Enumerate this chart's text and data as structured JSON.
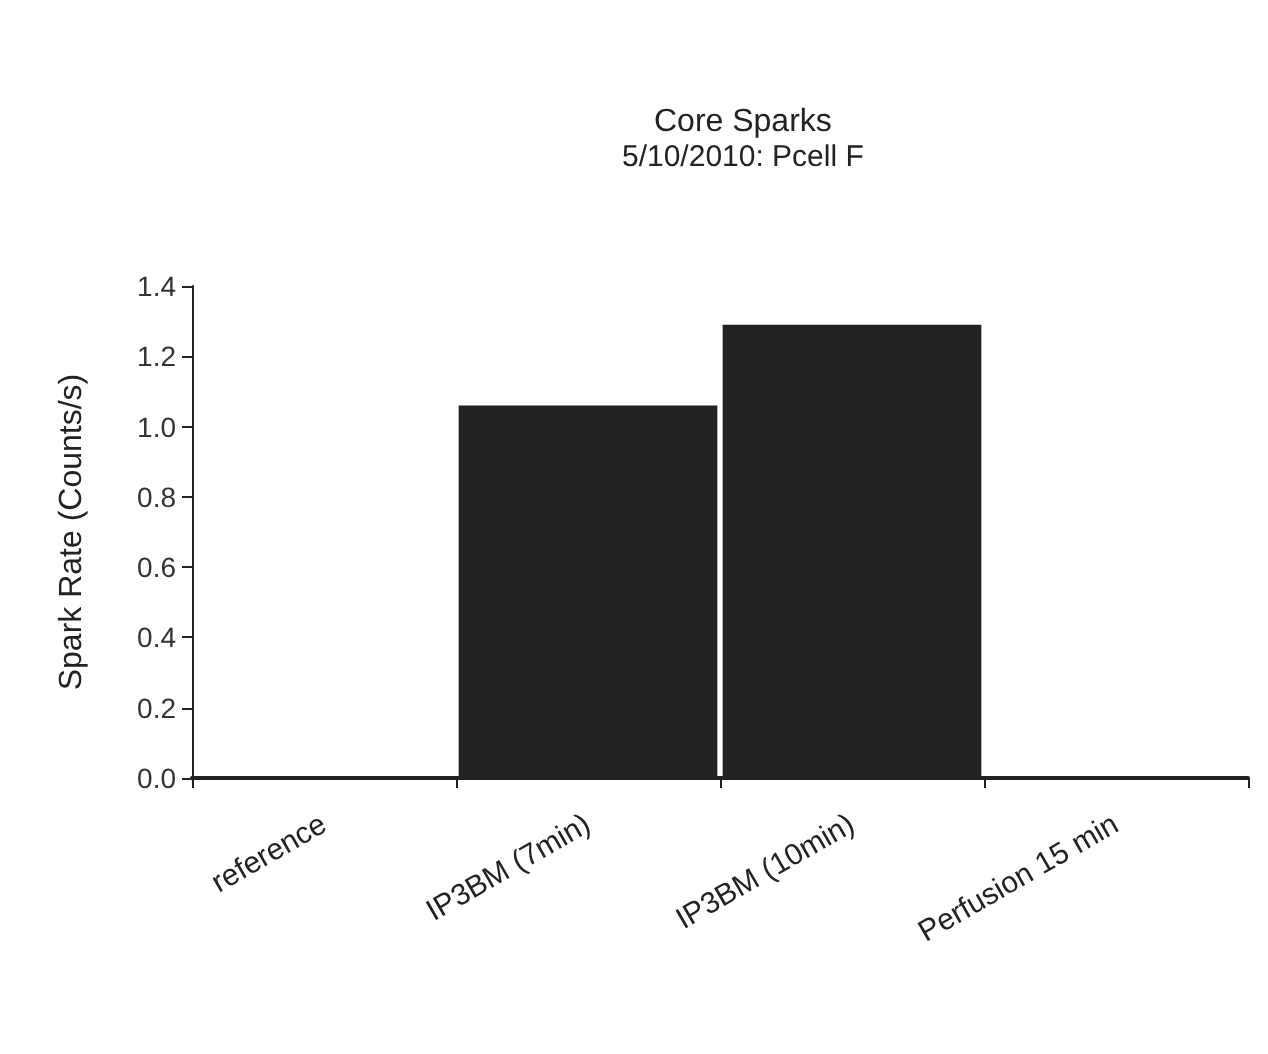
{
  "chart_data": {
    "type": "bar",
    "title": "Core Sparks",
    "subtitle": "5/10/2010: Pcell F",
    "ylabel": "Spark Rate (Counts/s)",
    "categories": [
      "reference",
      "IP3BM (7min)",
      "IP3BM (10min)",
      "Perfusion 15 min"
    ],
    "values": [
      0,
      1.06,
      1.29,
      0
    ],
    "color": "#222222",
    "ylim": [
      0,
      1.4
    ],
    "yticks": [
      {
        "value": 0,
        "label": "0.0"
      },
      0.2,
      0.4,
      0.6,
      0.8,
      {
        "value": 1,
        "label": "1.0"
      },
      1.2,
      1.4
    ],
    "grid": false
  }
}
